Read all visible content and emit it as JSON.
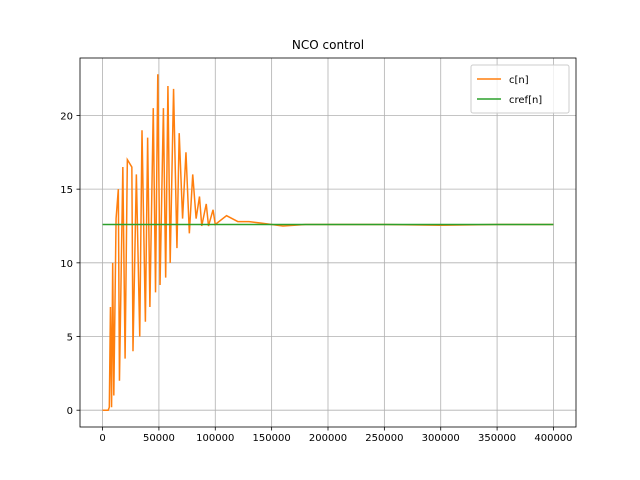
{
  "chart_data": {
    "type": "line",
    "title": "NCO control",
    "xlim": [
      -20000,
      420000
    ],
    "ylim": [
      -1.14,
      23.9
    ],
    "xticks": [
      0,
      50000,
      100000,
      150000,
      200000,
      250000,
      300000,
      350000,
      400000
    ],
    "yticks": [
      0,
      5,
      10,
      15,
      20
    ],
    "grid": true,
    "legend": "upper right",
    "series": [
      {
        "name": "c[n]",
        "color": "#ff7f0e",
        "x": [
          0,
          5000,
          6000,
          7000,
          8000,
          9000,
          10000,
          12000,
          14000,
          15000,
          18000,
          20000,
          22000,
          26000,
          27000,
          30000,
          33000,
          35000,
          38000,
          40000,
          42000,
          45000,
          47000,
          49000,
          51000,
          54000,
          56000,
          58000,
          60000,
          63000,
          66000,
          68000,
          71000,
          74000,
          77000,
          80000,
          83000,
          86000,
          88000,
          92000,
          94000,
          98000,
          100000,
          110000,
          120000,
          130000,
          140000,
          150000,
          160000,
          180000,
          200000,
          250000,
          300000,
          350000,
          400000
        ],
        "values": [
          0,
          0,
          0.2,
          7,
          0.2,
          10,
          1,
          13,
          15,
          2,
          16.5,
          3.5,
          17,
          16.5,
          4,
          16,
          5,
          19,
          6,
          18.5,
          7,
          20.5,
          8,
          22.8,
          8.5,
          20.5,
          9,
          22,
          10,
          21.8,
          11,
          18.8,
          13,
          17.5,
          12,
          16,
          13,
          14.5,
          12.5,
          14,
          12.5,
          13.6,
          12.6,
          13.2,
          12.8,
          12.8,
          12.7,
          12.6,
          12.5,
          12.6,
          12.6,
          12.6,
          12.55,
          12.6,
          12.6
        ]
      },
      {
        "name": "cref[n]",
        "color": "#2ca02c",
        "x": [
          0,
          400000
        ],
        "values": [
          12.6,
          12.6
        ]
      }
    ]
  }
}
